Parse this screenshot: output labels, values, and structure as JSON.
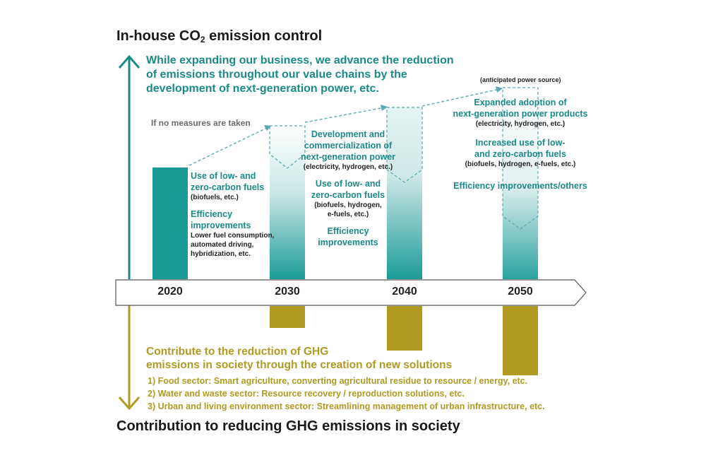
{
  "titles": {
    "top_prefix": "In-house CO",
    "top_sub": "2",
    "top_suffix": " emission control",
    "bottom": "Contribution to reducing GHG emissions in society"
  },
  "teal_headline": [
    "While expanding our business, we advance the reduction",
    "of emissions throughout our value chains by the",
    "development of next-generation power, etc."
  ],
  "no_measures_label": "If no measures are taken",
  "anticipated_label": "(anticipated power source)",
  "years": [
    "2020",
    "2030",
    "2040",
    "2050"
  ],
  "col2020": {
    "fuels_title": [
      "Use of low- and",
      "zero-carbon fuels"
    ],
    "fuels_sub": "(biofuels, etc.)",
    "eff_title": [
      "Efficiency",
      "improvements"
    ],
    "eff_sub": [
      "Lower fuel consumption,",
      "automated driving,",
      "hybridization, etc."
    ]
  },
  "col2030": {
    "dev_title": [
      "Development and",
      "commercialization of",
      "next-generation power"
    ],
    "dev_sub": "(electricity, hydrogen, etc.)",
    "fuels_title": [
      "Use of low- and",
      "zero-carbon fuels"
    ],
    "fuels_sub": [
      "(biofuels, hydrogen,",
      "e-fuels, etc.)"
    ],
    "eff_title": [
      "Efficiency",
      "improvements"
    ]
  },
  "col2050": {
    "adopt_title": [
      "Expanded adoption of",
      "next-generation power products"
    ],
    "adopt_sub": "(electricity, hydrogen, etc.)",
    "fuels_title": [
      "Increased use of low-",
      "and zero-carbon fuels"
    ],
    "fuels_sub": "(biofuels, hydrogen, e-fuels, etc.)",
    "eff_title": "Efficiency improvements/others"
  },
  "olive_headline": [
    "Contribute to the reduction of GHG",
    "emissions in society through the creation of new solutions"
  ],
  "olive_items": [
    "1) Food sector: Smart agriculture, converting agricultural residue to resource / energy, etc.",
    "2) Water and waste sector: Resource recovery / reproduction solutions, etc.",
    "3) Urban and living environment sector: Streamlining management of urban infrastructure, etc."
  ],
  "colors": {
    "teal": "#1b8a86",
    "olive": "#b09a22",
    "dash": "#5aa8b2"
  }
}
